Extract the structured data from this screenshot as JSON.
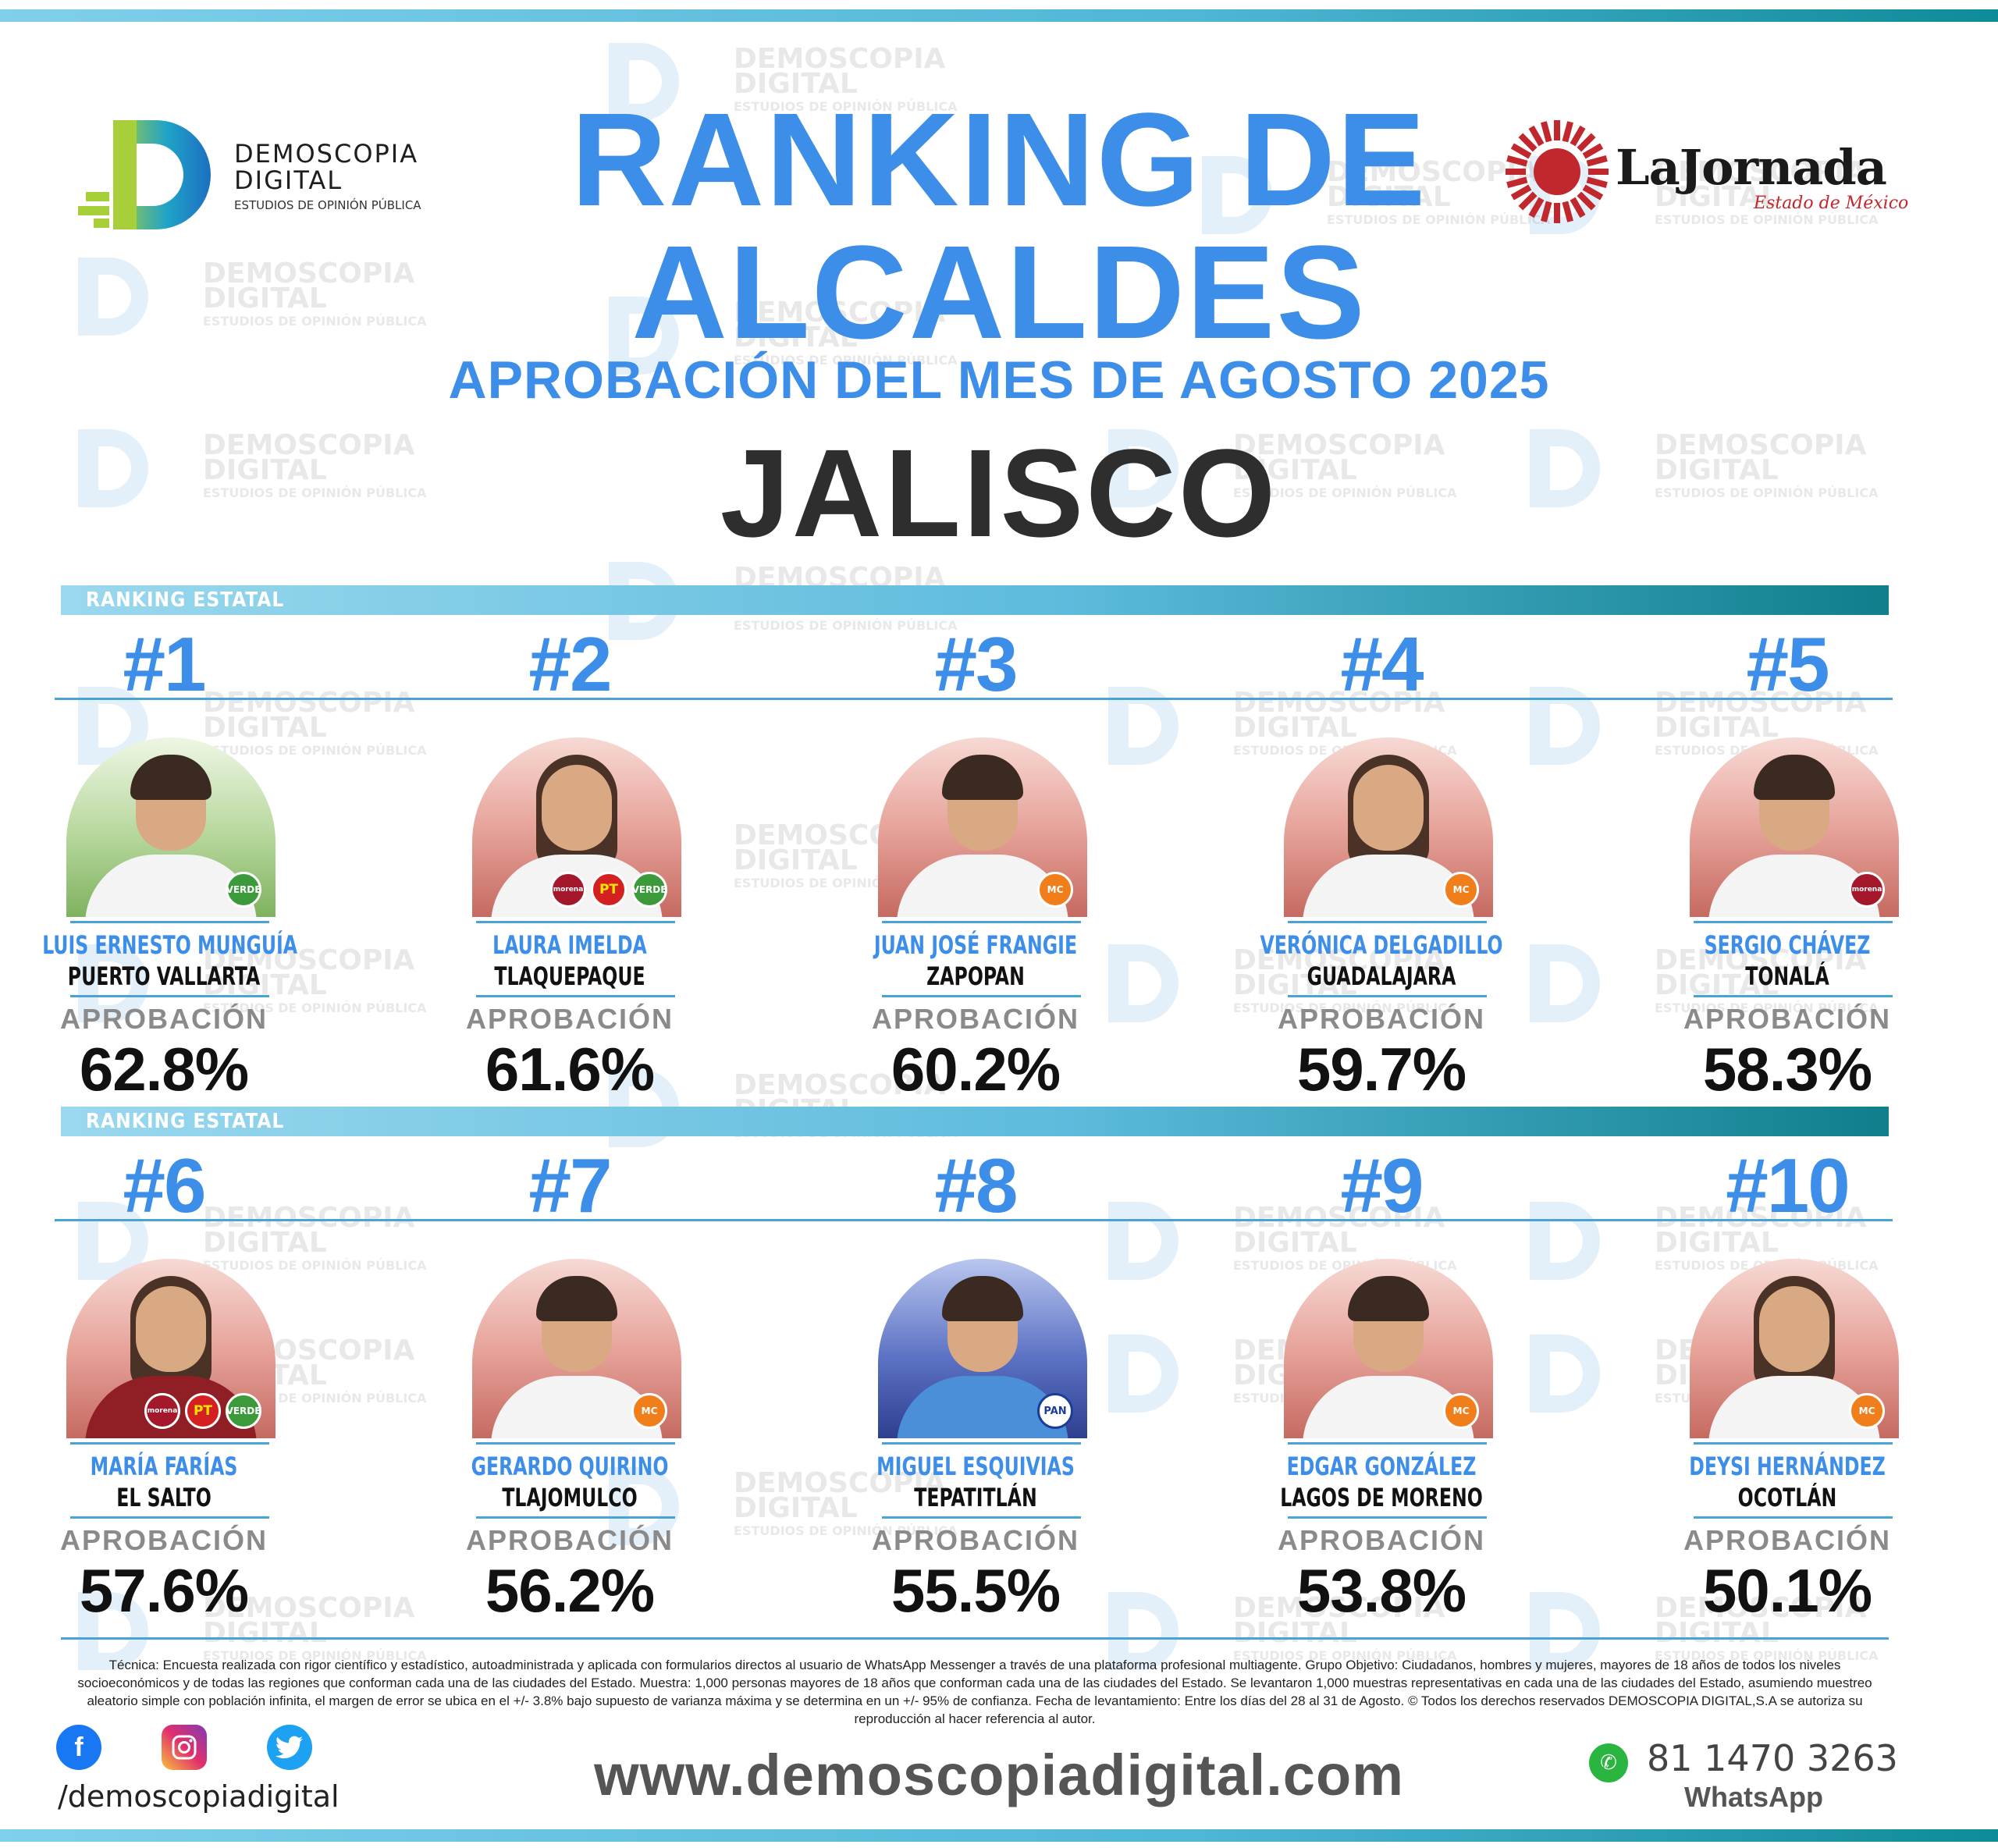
{
  "header": {
    "logo_left": {
      "line1": "DEMOSCOPIA",
      "line2": "DIGITAL",
      "line3": "ESTUDIOS DE OPINIÓN PÚBLICA"
    },
    "logo_right": {
      "name": "LaJornada",
      "sub": "Estado de México"
    },
    "title_line1": "RANKING DE",
    "title_line2": "ALCALDES",
    "subtitle": "APROBACIÓN DEL MES DE AGOSTO 2025",
    "state": "JALISCO"
  },
  "watermark": {
    "line1": "DEMOSCOPIA",
    "line2": "DIGITAL",
    "line3": "ESTUDIOS DE OPINIÓN PÚBLICA"
  },
  "section_label": "RANKING ESTATAL",
  "approval_label": "APROBACIÓN",
  "colors": {
    "accent": "#3d8ee8",
    "bar_light": "#9ad8ee",
    "bar_dark": "#0f7f8c",
    "morena": "#a5172b",
    "verde": "#3c9a3a",
    "pt": "#d42020",
    "mc": "#f07e1b",
    "pan": "#1b3d9a"
  },
  "ranking": [
    {
      "rank": "#1",
      "name": "LUIS ERNESTO MUNGUÍA",
      "city": "PUERTO VALLARTA",
      "approval": "62.8%",
      "parties": [
        "VERDE"
      ]
    },
    {
      "rank": "#2",
      "name": "LAURA IMELDA",
      "city": "TLAQUEPAQUE",
      "approval": "61.6%",
      "parties": [
        "morena",
        "PT",
        "VERDE"
      ]
    },
    {
      "rank": "#3",
      "name": "JUAN JOSÉ FRANGIE",
      "city": "ZAPOPAN",
      "approval": "60.2%",
      "parties": [
        "MC"
      ]
    },
    {
      "rank": "#4",
      "name": "VERÓNICA DELGADILLO",
      "city": "GUADALAJARA",
      "approval": "59.7%",
      "parties": [
        "MC"
      ]
    },
    {
      "rank": "#5",
      "name": "SERGIO CHÁVEZ",
      "city": "TONALÁ",
      "approval": "58.3%",
      "parties": [
        "morena"
      ]
    },
    {
      "rank": "#6",
      "name": "MARÍA FARÍAS",
      "city": "EL SALTO",
      "approval": "57.6%",
      "parties": [
        "morena",
        "PT",
        "VERDE"
      ]
    },
    {
      "rank": "#7",
      "name": "GERARDO QUIRINO",
      "city": "TLAJOMULCO",
      "approval": "56.2%",
      "parties": [
        "MC"
      ]
    },
    {
      "rank": "#8",
      "name": "MIGUEL ESQUIVIAS",
      "city": "TEPATITLÁN",
      "approval": "55.5%",
      "parties": [
        "PAN"
      ]
    },
    {
      "rank": "#9",
      "name": "EDGAR GONZÁLEZ",
      "city": "LAGOS DE MORENO",
      "approval": "53.8%",
      "parties": [
        "MC"
      ]
    },
    {
      "rank": "#10",
      "name": "DEYSI HERNÁNDEZ",
      "city": "OCOTLÁN",
      "approval": "50.1%",
      "parties": [
        "MC"
      ]
    }
  ],
  "footer": {
    "tecnica": "Técnica: Encuesta realizada con rigor científico y estadístico, autoadministrada y aplicada con formularios directos al usuario de WhatsApp Messenger a través de una plataforma profesional multiagente. Grupo Objetivo: Ciudadanos, hombres y mujeres, mayores de 18 años de todos los niveles socioeconómicos y de todas las regiones que conforman cada una de las ciudades del Estado. Muestra: 1,000 personas mayores de 18 años que conforman cada una de las ciudades del Estado. Se levantaron 1,000 muestras representativas en cada una de las ciudades del Estado, asumiendo muestreo aleatorio simple con población infinita, el margen de error se ubica en el +/- 3.8% bajo supuesto de varianza máxima y se determina en un +/- 95% de confianza. Fecha de levantamiento: Entre los días del 28 al 31 de Agosto. © Todos los derechos reservados DEMOSCOPIA DIGITAL,S.A se autoriza su reproducción al hacer referencia al autor.",
    "social_icons": [
      "facebook-icon",
      "instagram-icon",
      "twitter-icon"
    ],
    "handle": "/demoscopiadigital",
    "website": "www.demoscopiadigital.com",
    "phone": "81 1470 3263",
    "phone_label": "WhatsApp"
  }
}
